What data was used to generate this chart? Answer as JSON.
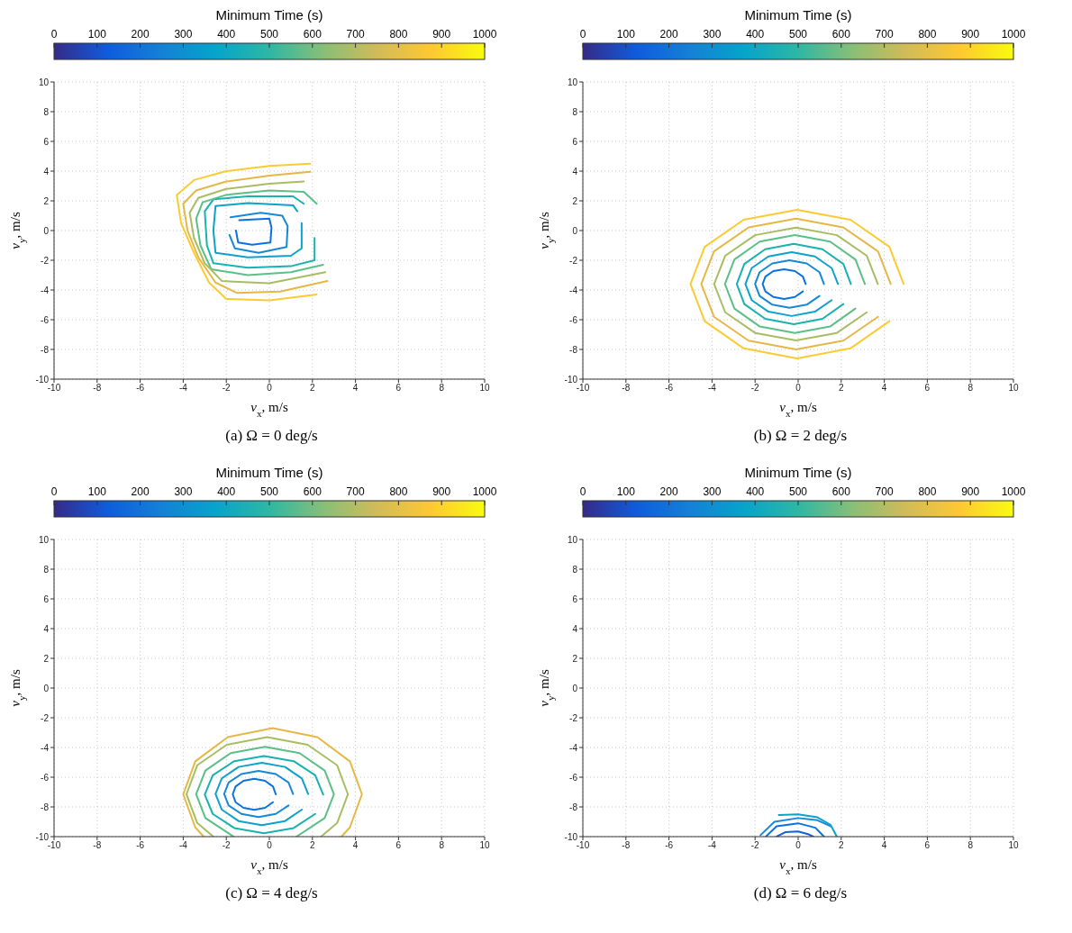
{
  "chart_data": [
    {
      "type": "line",
      "title": "(a) Ω = 0 deg/s",
      "xlabel": "v$_{x}$, m/s",
      "ylabel": "v$_{y}$, m/s",
      "clabel": "Minimum Time (s)",
      "clim": [
        0,
        1000
      ],
      "cticks": [
        0,
        100,
        200,
        300,
        400,
        500,
        600,
        700,
        800,
        900,
        1000
      ],
      "xlim": [
        -10,
        10
      ],
      "ylim": [
        -10,
        10
      ],
      "xticks": [
        -10,
        -8,
        -6,
        -4,
        -2,
        0,
        2,
        4,
        6,
        8,
        10
      ],
      "yticks": [
        -10,
        -8,
        -6,
        -4,
        -2,
        0,
        2,
        4,
        6,
        8,
        10
      ],
      "grid": true,
      "series": [
        {
          "color": "#0a72de",
          "x": [
            -1.4,
            0,
            0.1,
            0.05,
            -0.8,
            -1.45,
            -1.55
          ],
          "values": [
            0.7,
            0.8,
            0.2,
            -0.8,
            -0.95,
            -0.8,
            0
          ]
        },
        {
          "color": "#1789d4",
          "x": [
            -1.8,
            -0.4,
            0.6,
            0.85,
            0.8,
            -0.5,
            -1.6,
            -1.85
          ],
          "values": [
            0.9,
            1.2,
            1.0,
            0.3,
            -1.1,
            -1.5,
            -1.2,
            -0.3
          ]
        },
        {
          "color": "#0ca2cc",
          "x": [
            1.3,
            1.1,
            -1,
            -2.5,
            -2.6,
            -2.5,
            -1,
            1,
            1.5,
            1.5
          ],
          "values": [
            1.3,
            1.7,
            1.85,
            1.65,
            0,
            -1.5,
            -1.8,
            -1.7,
            -1.2,
            0.5
          ]
        },
        {
          "color": "#18b2b0",
          "x": [
            1.6,
            1.1,
            -1,
            -2.6,
            -3.0,
            -2.9,
            -2.6,
            -1,
            1,
            2.1,
            2.1
          ],
          "values": [
            1.8,
            2.3,
            2.3,
            2.1,
            1.3,
            -1.0,
            -2.2,
            -2.5,
            -2.4,
            -2.0,
            -0.5
          ]
        },
        {
          "color": "#5bbf88",
          "x": [
            2.2,
            1.6,
            0,
            -2,
            -3.1,
            -3.4,
            -3.2,
            -2.7,
            -1,
            1,
            2.5
          ],
          "values": [
            1.8,
            2.6,
            2.7,
            2.4,
            1.9,
            0.8,
            -1.0,
            -2.6,
            -3.0,
            -2.8,
            -2.3
          ]
        },
        {
          "color": "#a8bd62",
          "x": [
            1.6,
            0,
            -2,
            -3.3,
            -3.7,
            -3.5,
            -3,
            -2.2,
            0,
            2.6
          ],
          "values": [
            3.3,
            3.15,
            2.8,
            2.2,
            1.2,
            -0.5,
            -2.2,
            -3.4,
            -3.55,
            -2.8
          ]
        },
        {
          "color": "#e5b846",
          "x": [
            1.9,
            0,
            -2,
            -3.4,
            -4.0,
            -3.8,
            -3.3,
            -2.5,
            -1.5,
            0.5,
            2.7
          ],
          "values": [
            3.95,
            3.7,
            3.3,
            2.7,
            1.8,
            0,
            -1.8,
            -3.5,
            -4.2,
            -4.1,
            -3.4
          ]
        },
        {
          "color": "#fbcb33",
          "x": [
            1.9,
            0,
            -2,
            -3.5,
            -4.3,
            -4.1,
            -3.5,
            -2.8,
            -2,
            0,
            2.2
          ],
          "values": [
            4.5,
            4.35,
            4.0,
            3.4,
            2.4,
            0.5,
            -1.5,
            -3.5,
            -4.6,
            -4.7,
            -4.3
          ]
        }
      ]
    },
    {
      "type": "line",
      "title": "(b) Ω = 2 deg/s",
      "xlabel": "v$_{x}$, m/s",
      "ylabel": "v$_{y}$, m/s",
      "clabel": "Minimum Time (s)",
      "clim": [
        0,
        1000
      ],
      "cticks": [
        0,
        100,
        200,
        300,
        400,
        500,
        600,
        700,
        800,
        900,
        1000
      ],
      "xlim": [
        -10,
        10
      ],
      "ylim": [
        -10,
        10
      ],
      "xticks": [
        -10,
        -8,
        -6,
        -4,
        -2,
        0,
        2,
        4,
        6,
        8,
        10
      ],
      "yticks": [
        -10,
        -8,
        -6,
        -4,
        -2,
        0,
        2,
        4,
        6,
        8,
        10
      ],
      "grid": true,
      "series": [
        {
          "color": "#0a72de",
          "x": [
            0.35,
            0.22,
            -0.15,
            -0.65,
            -1.15,
            -1.52,
            -1.65,
            -1.52,
            -1.15,
            -0.65,
            -0.15,
            0.22
          ],
          "values": [
            -3.6,
            -3.1,
            -2.73,
            -2.6,
            -2.73,
            -3.1,
            -3.6,
            -4.1,
            -4.47,
            -4.6,
            -4.47,
            -4.1
          ]
        },
        {
          "color": "#1789d4",
          "x": [
            1.2,
            0.99,
            0.4,
            -0.4,
            -1.2,
            -1.79,
            -2.0,
            -1.79,
            -1.2,
            -0.4,
            0.4,
            0.99
          ],
          "values": [
            -3.6,
            -2.8,
            -2.21,
            -2.0,
            -2.21,
            -2.8,
            -3.6,
            -4.4,
            -4.99,
            -5.2,
            -4.99,
            -4.4
          ]
        },
        {
          "color": "#0ca2cc",
          "x": [
            1.85,
            1.56,
            0.78,
            -0.3,
            -1.38,
            -2.16,
            -2.45,
            -2.16,
            -1.38,
            -0.3,
            0.78,
            1.56
          ],
          "values": [
            -3.6,
            -2.53,
            -1.74,
            -1.45,
            -1.74,
            -2.53,
            -3.6,
            -4.68,
            -5.46,
            -5.75,
            -5.46,
            -4.68
          ]
        },
        {
          "color": "#18b2b0",
          "x": [
            2.45,
            2.1,
            1.13,
            -0.2,
            -1.53,
            -2.5,
            -2.85,
            -2.5,
            -1.53,
            -0.2,
            1.13,
            2.1
          ],
          "values": [
            -3.6,
            -2.25,
            -1.26,
            -0.9,
            -1.26,
            -2.25,
            -3.6,
            -4.95,
            -5.94,
            -6.3,
            -5.94,
            -4.95
          ]
        },
        {
          "color": "#5bbf88",
          "x": [
            3.1,
            2.66,
            1.48,
            -0.15,
            -1.78,
            -2.96,
            -3.4,
            -2.96,
            -1.78,
            -0.15,
            1.48,
            2.66
          ],
          "values": [
            -3.6,
            -1.95,
            -0.74,
            -0.3,
            -0.74,
            -1.95,
            -3.6,
            -5.25,
            -6.46,
            -6.9,
            -6.46,
            -5.25
          ]
        },
        {
          "color": "#a8bd62",
          "x": [
            3.7,
            3.19,
            1.8,
            -0.1,
            -2.0,
            -3.39,
            -3.9,
            -3.39,
            -2.0,
            -0.1,
            1.8,
            3.19
          ],
          "values": [
            -3.6,
            -1.7,
            -0.31,
            0.2,
            -0.31,
            -1.7,
            -3.6,
            -5.5,
            -6.89,
            -7.4,
            -6.89,
            -5.5
          ]
        },
        {
          "color": "#e5b846",
          "x": [
            4.3,
            3.71,
            2.1,
            -0.1,
            -2.3,
            -3.91,
            -4.5,
            -3.91,
            -2.3,
            -0.1,
            2.1,
            3.71
          ],
          "values": [
            -3.6,
            -1.4,
            0.21,
            0.8,
            0.21,
            -1.4,
            -3.6,
            -5.8,
            -7.41,
            -8.0,
            -7.41,
            -5.8
          ]
        },
        {
          "color": "#fbcb33",
          "x": [
            4.9,
            4.24,
            2.43,
            -0.05,
            -2.53,
            -4.34,
            -5.0,
            -4.34,
            -2.53,
            -0.05,
            2.43,
            4.24
          ],
          "values": [
            -3.6,
            -1.1,
            0.73,
            1.4,
            0.73,
            -1.1,
            -3.6,
            -6.1,
            -7.93,
            -8.6,
            -7.93,
            -6.1
          ]
        }
      ]
    },
    {
      "type": "line",
      "title": "(c) Ω = 4 deg/s",
      "xlabel": "v$_{x}$, m/s",
      "ylabel": "v$_{y}$, m/s",
      "clabel": "Minimum Time (s)",
      "clim": [
        0,
        1000
      ],
      "cticks": [
        0,
        100,
        200,
        300,
        400,
        500,
        600,
        700,
        800,
        900,
        1000
      ],
      "xlim": [
        -10,
        10
      ],
      "ylim": [
        -10,
        10
      ],
      "xticks": [
        -10,
        -8,
        -6,
        -4,
        -2,
        0,
        2,
        4,
        6,
        8,
        10
      ],
      "yticks": [
        -10,
        -8,
        -6,
        -4,
        -2,
        0,
        2,
        4,
        6,
        8,
        10
      ],
      "grid": true,
      "series": [
        {
          "color": "#0a72de",
          "x": [
            0.3,
            0.17,
            -0.2,
            -0.7,
            -1.2,
            -1.57,
            -1.7,
            -1.57,
            -1.2,
            -0.7,
            -0.2,
            0.17
          ],
          "values": [
            -7.15,
            -6.63,
            -6.24,
            -6.1,
            -6.24,
            -6.63,
            -7.15,
            -7.68,
            -8.06,
            -8.2,
            -8.06,
            -7.68
          ]
        },
        {
          "color": "#1789d4",
          "x": [
            1.1,
            0.89,
            0.3,
            -0.5,
            -1.3,
            -1.89,
            -2.1,
            -1.89,
            -1.3,
            -0.5,
            0.3,
            0.89
          ],
          "values": [
            -7.13,
            -6.36,
            -5.79,
            -5.58,
            -5.79,
            -6.36,
            -7.13,
            -7.9,
            -8.47,
            -8.68,
            -8.47,
            -7.9
          ]
        },
        {
          "color": "#0ca2cc",
          "x": [
            1.8,
            1.51,
            0.73,
            -0.35,
            -1.43,
            -2.21,
            -2.5,
            -2.21,
            -1.43,
            -0.35,
            0.73,
            1.51
          ],
          "values": [
            -7.13,
            -6.08,
            -5.31,
            -5.03,
            -5.31,
            -6.08,
            -7.13,
            -8.18,
            -8.95,
            -9.23,
            -8.95,
            -8.18
          ]
        },
        {
          "color": "#18b2b0",
          "x": [
            2.5,
            2.13,
            1.13,
            -0.25,
            -1.63,
            -2.63,
            -3.0,
            -2.63,
            -1.63,
            -0.25,
            1.13,
            2.13
          ],
          "values": [
            -7.17,
            -5.87,
            -4.92,
            -4.57,
            -4.92,
            -5.87,
            -7.17,
            -8.47,
            -9.42,
            -9.77,
            -9.42,
            -8.47
          ]
        },
        {
          "color": "#5bbf88",
          "x": [
            1.26,
            2.57,
            3.0,
            2.57,
            1.4,
            -0.2,
            -1.8,
            -2.97,
            -3.4,
            -2.97,
            -1.66
          ],
          "values": [
            -10,
            -8.75,
            -7.15,
            -5.55,
            -4.38,
            -3.95,
            -4.38,
            -5.55,
            -7.15,
            -8.75,
            -10
          ]
        },
        {
          "color": "#a8bd62",
          "x": [
            2.4,
            3.15,
            3.65,
            3.15,
            1.78,
            -0.1,
            -1.98,
            -3.35,
            -3.85,
            -3.35,
            -2.6
          ],
          "values": [
            -10,
            -9.08,
            -7.15,
            -5.2,
            -3.82,
            -3.3,
            -3.82,
            -5.2,
            -7.15,
            -9.08,
            -10
          ]
        },
        {
          "color": "#e5b846",
          "x": [
            3.35,
            3.74,
            4.3,
            3.74,
            2.23,
            0.15,
            -1.93,
            -3.44,
            -4.0,
            -3.44,
            -3.05
          ],
          "values": [
            -10,
            -9.38,
            -7.15,
            -4.93,
            -3.3,
            -2.7,
            -3.3,
            -4.93,
            -7.15,
            -9.38,
            -10
          ]
        }
      ]
    },
    {
      "type": "line",
      "title": "(d) Ω = 6 deg/s",
      "xlabel": "v$_{x}$, m/s",
      "ylabel": "v$_{y}$, m/s",
      "clabel": "Minimum Time (s)",
      "clim": [
        0,
        1000
      ],
      "cticks": [
        0,
        100,
        200,
        300,
        400,
        500,
        600,
        700,
        800,
        900,
        1000
      ],
      "xlim": [
        -10,
        10
      ],
      "ylim": [
        -10,
        10
      ],
      "xticks": [
        -10,
        -8,
        -6,
        -4,
        -2,
        0,
        2,
        4,
        6,
        8,
        10
      ],
      "yticks": [
        -10,
        -8,
        -6,
        -4,
        -2,
        0,
        2,
        4,
        6,
        8,
        10
      ],
      "grid": true,
      "series": [
        {
          "color": "#1560d8",
          "x": [
            -1.0,
            -0.6,
            0,
            0.5,
            0.7
          ],
          "values": [
            -10,
            -9.7,
            -9.65,
            -9.85,
            -10
          ]
        },
        {
          "color": "#0a72de",
          "x": [
            -1.5,
            -1.0,
            0,
            0.8,
            1.2
          ],
          "values": [
            -10,
            -9.3,
            -9.1,
            -9.4,
            -10
          ]
        },
        {
          "color": "#1789d4",
          "x": [
            -1.75,
            -1.1,
            0,
            0.9,
            1.5
          ],
          "values": [
            -9.9,
            -9.0,
            -8.75,
            -8.9,
            -9.3
          ]
        },
        {
          "color": "#0ca2cc",
          "x": [
            -0.9,
            0,
            0.9,
            1.5,
            1.8
          ],
          "values": [
            -8.55,
            -8.5,
            -8.7,
            -9.2,
            -10
          ]
        }
      ]
    }
  ]
}
